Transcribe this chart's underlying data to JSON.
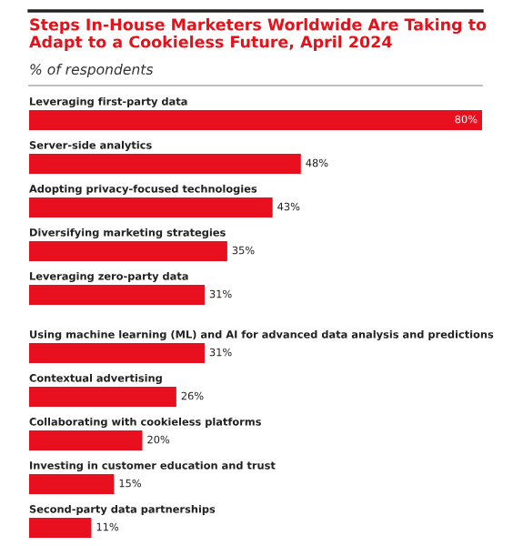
{
  "chart_data": {
    "type": "bar",
    "orientation": "horizontal",
    "title": "Steps In-House Marketers Worldwide Are Taking to Adapt to a Cookieless Future, April 2024",
    "subtitle": "% of respondents",
    "categories": [
      "Leveraging first-party data",
      "Server-side analytics",
      "Adopting privacy-focused technologies",
      "Diversifying marketing strategies",
      "Leveraging zero-party data",
      "Using machine learning (ML) and AI for advanced data analysis and predictions",
      "Contextual advertising",
      "Collaborating with cookieless platforms",
      "Investing in customer education and trust",
      "Second-party data partnerships"
    ],
    "values": [
      80,
      48,
      43,
      35,
      31,
      31,
      26,
      20,
      15,
      11
    ],
    "value_labels": [
      "80%",
      "48%",
      "43%",
      "35%",
      "31%",
      "31%",
      "26%",
      "20%",
      "15%",
      "11%"
    ],
    "color": "#e8101e"
  }
}
